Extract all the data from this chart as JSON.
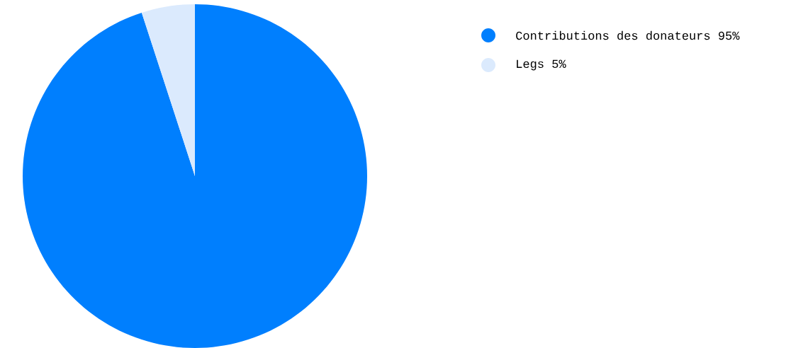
{
  "chart_data": {
    "type": "pie",
    "categories": [
      "Contributions des donateurs",
      "Legs"
    ],
    "values": [
      95,
      5
    ],
    "colors": [
      "#007ffe",
      "#dbeafd"
    ],
    "value_labels": [
      "95%",
      "5%"
    ],
    "legend": "top right"
  }
}
